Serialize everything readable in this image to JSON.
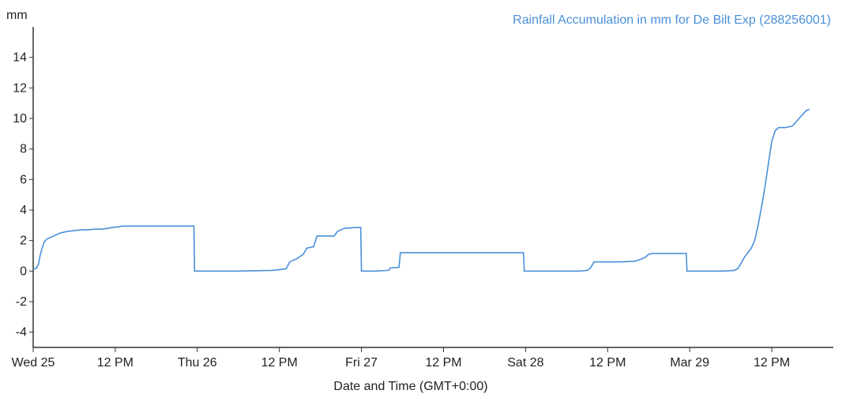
{
  "chart_data": {
    "type": "line",
    "title": "Rainfall Accumulation in mm for De Bilt Exp (288256001)",
    "ylabel": "mm",
    "xlabel": "Date and Time (GMT+0:00)",
    "ylim": [
      -5,
      16
    ],
    "y_ticks": [
      -4,
      -2,
      0,
      2,
      4,
      6,
      8,
      10,
      12,
      14
    ],
    "x_unit": "hours from Wed 25 00:00",
    "xlim": [
      0,
      117
    ],
    "x_ticks": [
      {
        "x": 0,
        "label": "Wed 25"
      },
      {
        "x": 12,
        "label": "12 PM"
      },
      {
        "x": 24,
        "label": "Thu 26"
      },
      {
        "x": 36,
        "label": "12 PM"
      },
      {
        "x": 48,
        "label": "Fri 27"
      },
      {
        "x": 60,
        "label": "12 PM"
      },
      {
        "x": 72,
        "label": "Sat 28"
      },
      {
        "x": 84,
        "label": "12 PM"
      },
      {
        "x": 96,
        "label": "Mar 29"
      },
      {
        "x": 108,
        "label": "12 PM"
      }
    ],
    "grid": false,
    "line_color": "#4a90d9",
    "series": [
      {
        "x": [
          0,
          0.5,
          0.8,
          1.0,
          1.3,
          1.6,
          2.0,
          2.5,
          3.0,
          3.5,
          4.0,
          5.0,
          6.0,
          7.0,
          8.0,
          9.0,
          10.0,
          11.0,
          11.5,
          12.5,
          13.0,
          14.0,
          20.0,
          23.5,
          23.6,
          26.0,
          30.0,
          35.0,
          36.0,
          37.0,
          37.5,
          38.0,
          38.5,
          39.5,
          40.0,
          41.0,
          41.5,
          42.0,
          44.0,
          44.5,
          45.5,
          47.0,
          47.9,
          48.0,
          50.0,
          52.0,
          52.2,
          53.5,
          53.7,
          59.0,
          65.0,
          71.7,
          71.8,
          75.0,
          80.0,
          81.0,
          81.5,
          82.0,
          84.0,
          86.0,
          88.0,
          89.0,
          89.5,
          90.0,
          90.5,
          92.0,
          95.5,
          95.6,
          98.0,
          101.0,
          102.5,
          103.0,
          103.5,
          104.0,
          104.5,
          105.0,
          105.5,
          106.0,
          106.5,
          107.0,
          107.5,
          108.0,
          108.5,
          109.0,
          109.5,
          110.0,
          110.5,
          111.0,
          112.0,
          113.0,
          113.5
        ],
        "y": [
          0.1,
          0.2,
          0.5,
          1.0,
          1.5,
          1.9,
          2.1,
          2.2,
          2.3,
          2.4,
          2.5,
          2.6,
          2.65,
          2.7,
          2.7,
          2.75,
          2.75,
          2.8,
          2.85,
          2.9,
          2.95,
          2.95,
          2.95,
          2.95,
          0,
          0,
          0,
          0.05,
          0.1,
          0.15,
          0.6,
          0.7,
          0.8,
          1.1,
          1.5,
          1.6,
          2.3,
          2.3,
          2.3,
          2.6,
          2.8,
          2.85,
          2.85,
          0,
          0,
          0.05,
          0.2,
          0.25,
          1.2,
          1.2,
          1.2,
          1.2,
          0,
          0,
          0,
          0.05,
          0.2,
          0.6,
          0.6,
          0.6,
          0.65,
          0.8,
          0.9,
          1.1,
          1.15,
          1.15,
          1.15,
          0,
          0,
          0,
          0.05,
          0.15,
          0.5,
          0.9,
          1.2,
          1.5,
          2.0,
          3.0,
          4.2,
          5.5,
          7.0,
          8.5,
          9.2,
          9.4,
          9.4,
          9.4,
          9.45,
          9.5,
          10.0,
          10.5,
          10.6
        ]
      }
    ]
  }
}
